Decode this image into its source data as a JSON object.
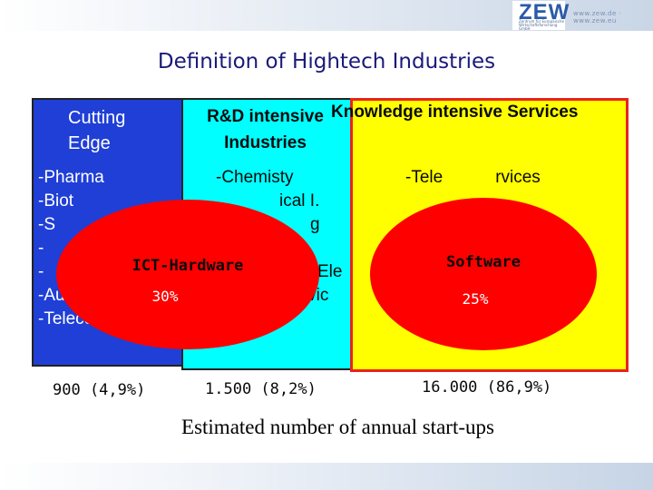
{
  "header": {
    "logo_text": "ZEW",
    "logo_subtitle": "Zentrum für Europäische Wirtschaftsforschung GmbH",
    "url": "www.zew.de  ·  www.zew.eu"
  },
  "title": "Definition of Hightech Industries",
  "groups": {
    "cutting_edge": {
      "heading_line1": "Cutting",
      "heading_line2": "Edge",
      "items": [
        "-Pharma",
        "-Biot",
        "-S",
        "-",
        "-",
        "-Au",
        "-Telecom"
      ],
      "count": "900 (4,9%)"
    },
    "rd_intensive": {
      "heading_line1": "R&D intensive",
      "heading_line2": "Industries",
      "items": [
        "-Chemisty",
        "ical I.",
        "g",
        "",
        "Ele",
        "devic"
      ],
      "count": "1.500 (8,2%)"
    },
    "knowledge_intensive": {
      "heading": "Knowledge intensive Services",
      "items": [
        "-Tele",
        "rvices"
      ],
      "fragments": [
        "s",
        "g"
      ],
      "count": "16.000 (86,9%)"
    }
  },
  "overlays": {
    "ict_hardware": {
      "label": "ICT-Hardware",
      "share": "30%"
    },
    "software": {
      "label": "Software",
      "share": "25%"
    }
  },
  "caption": "Estimated number of annual start-ups",
  "colors": {
    "cutting_edge_fill": "#1f3fd6",
    "rd_fill": "#00ffff",
    "services_fill": "#ffff00",
    "services_border": "#e8231f",
    "overlay_fill": "#ff0000",
    "title_color": "#1a1a7a"
  }
}
